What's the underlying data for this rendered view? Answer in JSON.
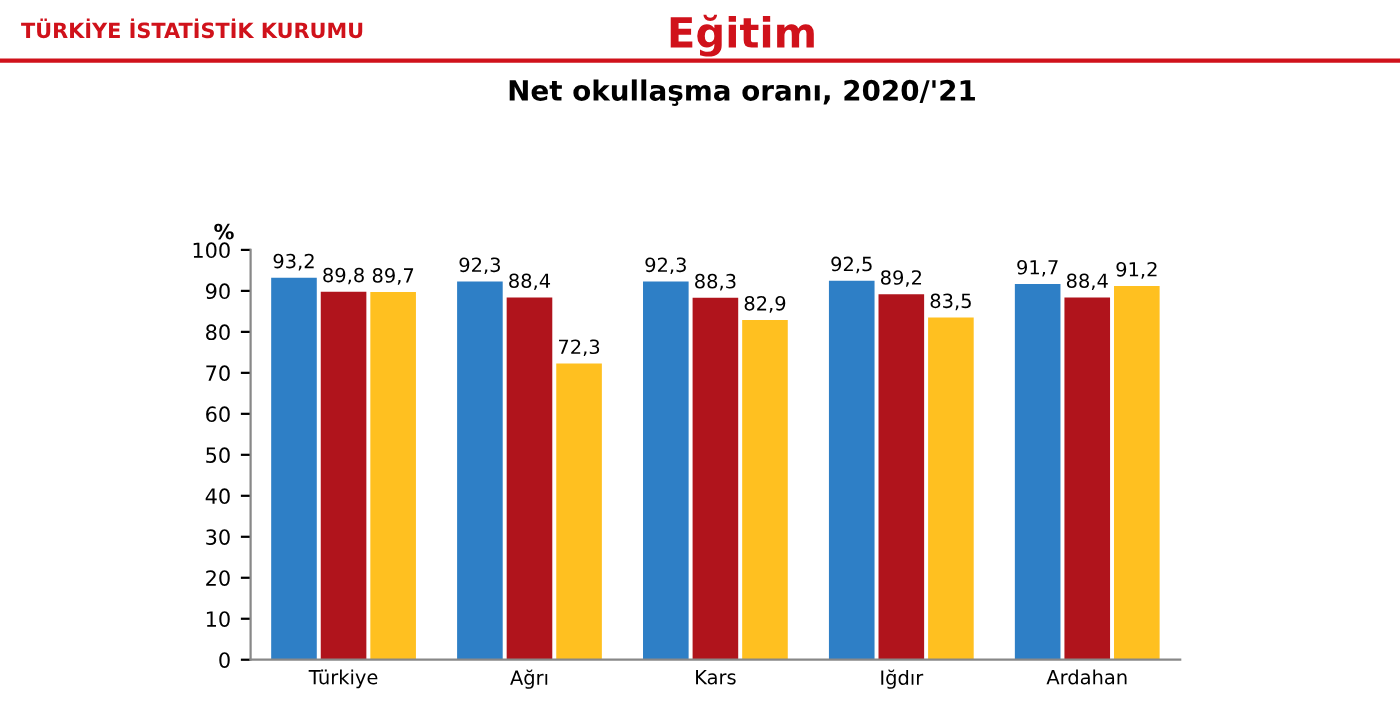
{
  "chart_data": {
    "type": "bar",
    "title": "Eğitim",
    "subtitle": "Net okullaşma oranı, 2020/'21",
    "ylabel": "%",
    "annotations": [
      "TÜRKİYE İSTATİSTİK KURUMU"
    ],
    "categories": [
      "Türkiye",
      "Ağrı",
      "Kars",
      "Iğdır",
      "Ardahan"
    ],
    "series": [
      {
        "color": "#2e7fc6",
        "values": [
          93.2,
          92.3,
          92.3,
          92.5,
          91.7
        ],
        "value_labels": [
          "93,2",
          "92,3",
          "92,3",
          "92,5",
          "91,7"
        ]
      },
      {
        "color": "#b0141c",
        "values": [
          89.8,
          88.4,
          88.3,
          89.2,
          88.4
        ],
        "value_labels": [
          "89,8",
          "88,4",
          "88,3",
          "89,2",
          "88,4"
        ]
      },
      {
        "color": "#ffc020",
        "values": [
          89.7,
          72.3,
          82.9,
          83.5,
          91.2
        ],
        "value_labels": [
          "89,7",
          "72,3",
          "82,9",
          "83,5",
          "91,2"
        ]
      }
    ],
    "ylim": [
      0,
      100
    ],
    "yticks": [
      0,
      10,
      20,
      30,
      40,
      50,
      60,
      70,
      80,
      90,
      100
    ],
    "grid": false
  }
}
